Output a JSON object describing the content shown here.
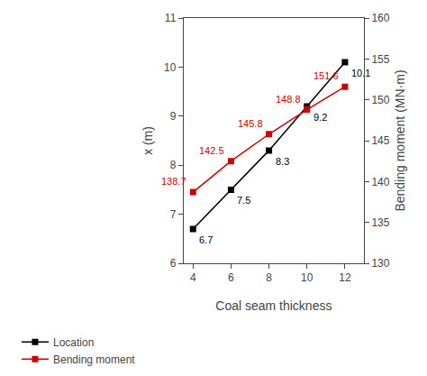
{
  "chart_data": {
    "type": "line",
    "x": [
      4,
      6,
      8,
      10,
      12
    ],
    "xlabel": "Coal seam thickness",
    "ylabel": "x (m)",
    "y2label": "Bending moment (MN·m)",
    "xlim": [
      3.5,
      13.0
    ],
    "xticks": [
      4,
      6,
      8,
      10,
      12
    ],
    "ylim": [
      6,
      11
    ],
    "yticks": [
      6,
      7,
      8,
      9,
      10,
      11
    ],
    "y2lim": [
      130,
      160
    ],
    "y2ticks": [
      130,
      135,
      140,
      145,
      150,
      155,
      160
    ],
    "series": [
      {
        "name": "Location",
        "color": "#000000",
        "marker": "square",
        "values": [
          6.7,
          7.5,
          8.3,
          9.2,
          10.1
        ]
      },
      {
        "name": "Bending moment",
        "color": "#cc0000",
        "marker": "square",
        "axis": "y2",
        "values": [
          138.7,
          142.5,
          145.8,
          148.8,
          151.6
        ]
      }
    ],
    "data_labels": true,
    "legend": "bottom",
    "grid": false
  }
}
